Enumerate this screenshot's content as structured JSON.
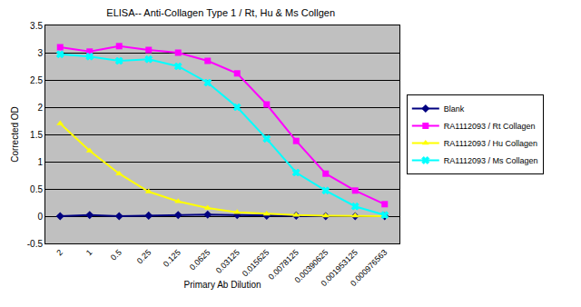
{
  "chart_data": {
    "type": "line",
    "title": "ELISA-- Anti-Collagen Type 1 / Rt, Hu & Ms Collgen",
    "x_label": "Primary Ab Dilution",
    "y_label": "Corrected OD",
    "categories": [
      "2",
      "1",
      "0.5",
      "0.25",
      "0.125",
      "0.0625",
      "0.03125",
      "0.015625",
      "0.0078125",
      "0.00390625",
      "0.001953125",
      "0.000976563"
    ],
    "series": [
      {
        "name": "Blank",
        "color": "#000080",
        "marker": "diamond",
        "line_style": "solid",
        "values": [
          0.0,
          0.02,
          0.0,
          0.01,
          0.02,
          0.03,
          0.02,
          0.01,
          0.01,
          0.0,
          0.0,
          0.0
        ]
      },
      {
        "name": "RA1112093 / Rt Collagen",
        "color": "#ff00ff",
        "marker": "square",
        "line_style": "solid",
        "values": [
          3.1,
          3.02,
          3.12,
          3.05,
          3.0,
          2.85,
          2.62,
          2.05,
          1.38,
          0.78,
          0.47,
          0.22
        ]
      },
      {
        "name": "RA1112093 / Hu Collagen",
        "color": "#ffff00",
        "marker": "triangle-up",
        "line_style": "solid",
        "values": [
          1.7,
          1.2,
          0.78,
          0.45,
          0.27,
          0.15,
          0.07,
          0.04,
          0.02,
          0.01,
          0.01,
          0.0
        ]
      },
      {
        "name": "RA1112093 / Ms Collagen",
        "color": "#00ffff",
        "marker": "x",
        "line_style": "solid",
        "values": [
          2.97,
          2.93,
          2.85,
          2.88,
          2.75,
          2.45,
          2.0,
          1.42,
          0.8,
          0.47,
          0.18,
          0.02
        ]
      }
    ],
    "ylim": [
      -0.5,
      3.5
    ],
    "yticks": [
      -0.5,
      0,
      0.5,
      1,
      1.5,
      2,
      2.5,
      3,
      3.5
    ],
    "grid": true,
    "legend": "right"
  }
}
